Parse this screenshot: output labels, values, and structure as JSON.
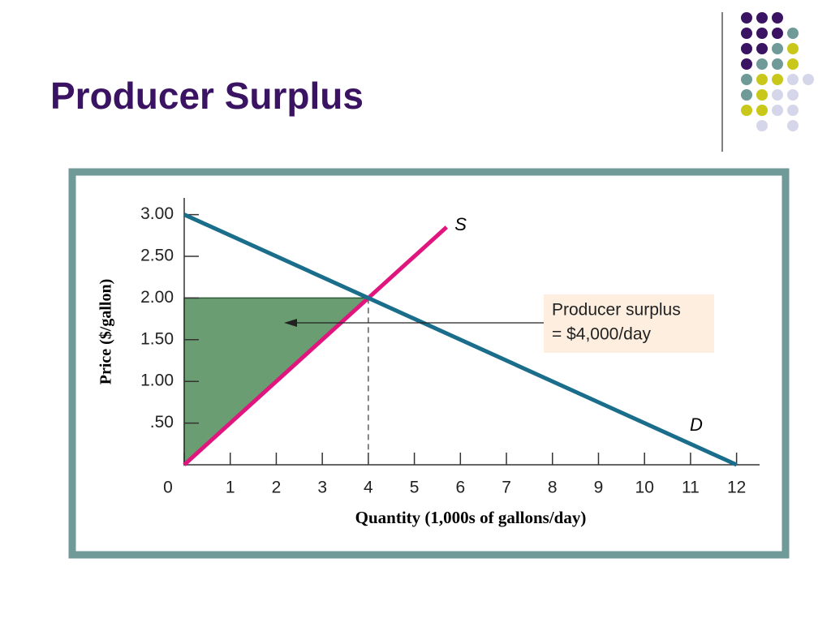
{
  "slide": {
    "title": "Producer Surplus"
  },
  "chart_data": {
    "type": "line",
    "x_label": "Quantity (1,000s of gallons/day)",
    "y_label": "Price ($/gallon)",
    "xlim": [
      0,
      12.5
    ],
    "ylim": [
      0,
      3.2
    ],
    "xticks": [
      0,
      1,
      2,
      3,
      4,
      5,
      6,
      7,
      8,
      9,
      10,
      11,
      12
    ],
    "yticks": [
      {
        "value": 0.5,
        "label": ".50"
      },
      {
        "value": 1,
        "label": "1.00"
      },
      {
        "value": 1.5,
        "label": "1.50"
      },
      {
        "value": 2,
        "label": "2.00"
      },
      {
        "value": 2.5,
        "label": "2.50"
      },
      {
        "value": 3,
        "label": "3.00"
      }
    ],
    "series": [
      {
        "name": "S",
        "color": "#e0157e",
        "x": [
          0,
          5.7
        ],
        "values": [
          0,
          2.85
        ]
      },
      {
        "name": "D",
        "color": "#1b6d8c",
        "x": [
          0,
          12
        ],
        "values": [
          3,
          0
        ]
      }
    ],
    "surplus_area": {
      "color": "#6a9e72",
      "x": [
        0,
        4,
        0
      ],
      "y": [
        0,
        2,
        2
      ]
    },
    "equilibrium": {
      "x": 4,
      "y": 2
    },
    "annotation": [
      "Producer surplus",
      "= $4,000/day"
    ]
  }
}
